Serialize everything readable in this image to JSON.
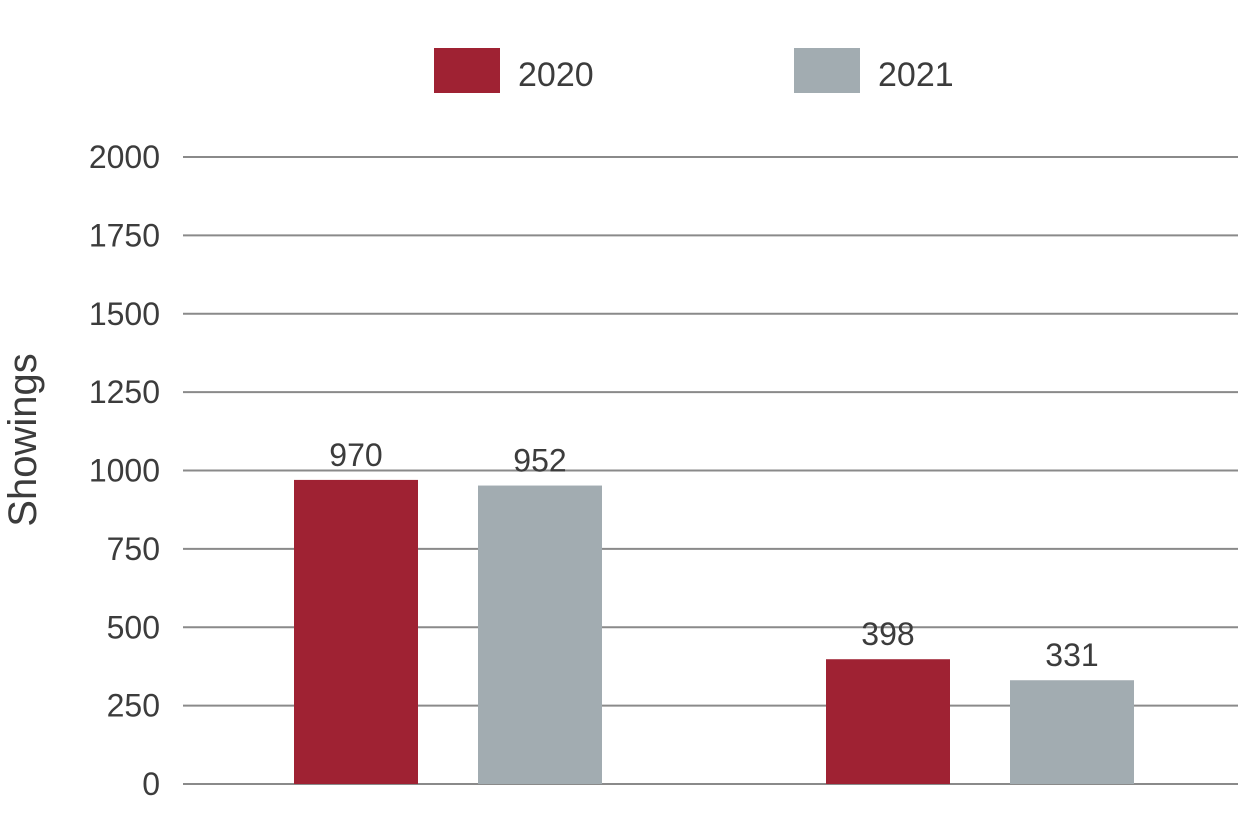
{
  "chart_data": {
    "type": "bar",
    "title": "",
    "ylabel": "Showings",
    "xlabel": "",
    "categories": [
      "",
      ""
    ],
    "series": [
      {
        "name": "2020",
        "color": "#9f2233",
        "values": [
          970,
          398
        ]
      },
      {
        "name": "2021",
        "color": "#a2acb1",
        "values": [
          952,
          331
        ]
      }
    ],
    "ylim": [
      0,
      2000
    ],
    "yticks": [
      0,
      250,
      500,
      750,
      1000,
      1250,
      1500,
      1750,
      2000
    ],
    "grid": true,
    "legend": "top-center"
  }
}
